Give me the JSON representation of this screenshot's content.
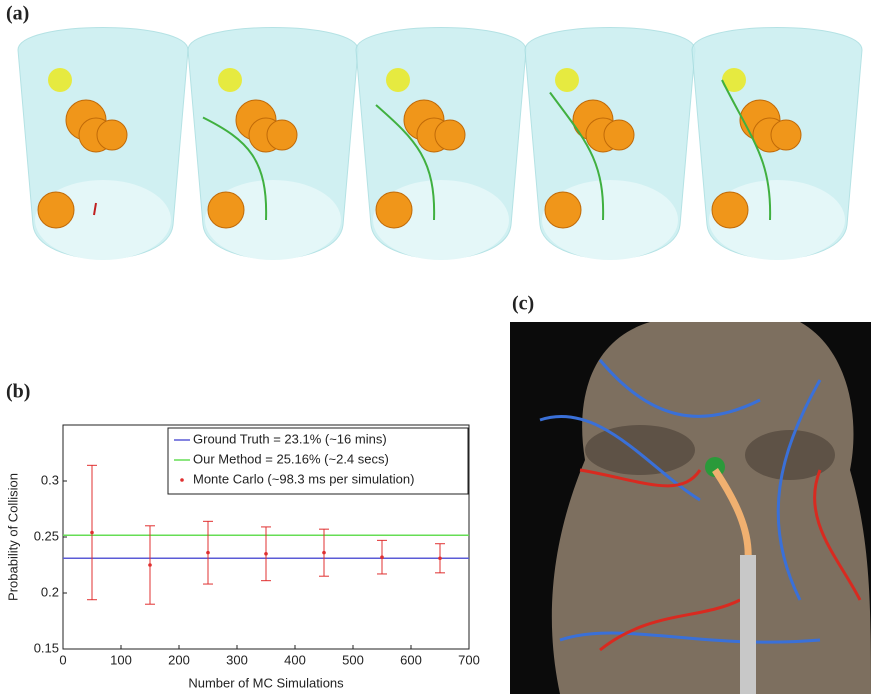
{
  "labels": [
    "(a)",
    "(b)",
    "(c)"
  ],
  "chart_data": {
    "type": "errorbar",
    "xlabel": "Number of MC Simulations",
    "ylabel": "Probability of Collision",
    "xlim": [
      0,
      700
    ],
    "xticks": [
      0,
      100,
      200,
      300,
      400,
      500,
      600,
      700
    ],
    "ylim": [
      0.15,
      0.35
    ],
    "yticks": [
      0.15,
      0.2,
      0.25,
      0.3
    ],
    "series": [
      {
        "name": "Ground Truth = 23.1% (~16 mins)",
        "color": "#5b5bd6",
        "type": "hline",
        "value": 0.231
      },
      {
        "name": "Our Method = 25.16% (~2.4 secs)",
        "color": "#66dd55",
        "type": "hline",
        "value": 0.2516
      },
      {
        "name": "Monte Carlo (~98.3 ms per simulation)",
        "color": "#e03030",
        "type": "errorbar",
        "x": [
          50,
          150,
          250,
          350,
          450,
          550,
          650
        ],
        "values": [
          0.254,
          0.225,
          0.236,
          0.235,
          0.236,
          0.232,
          0.231
        ],
        "errors": [
          0.06,
          0.035,
          0.028,
          0.024,
          0.021,
          0.015,
          0.013
        ]
      }
    ]
  }
}
